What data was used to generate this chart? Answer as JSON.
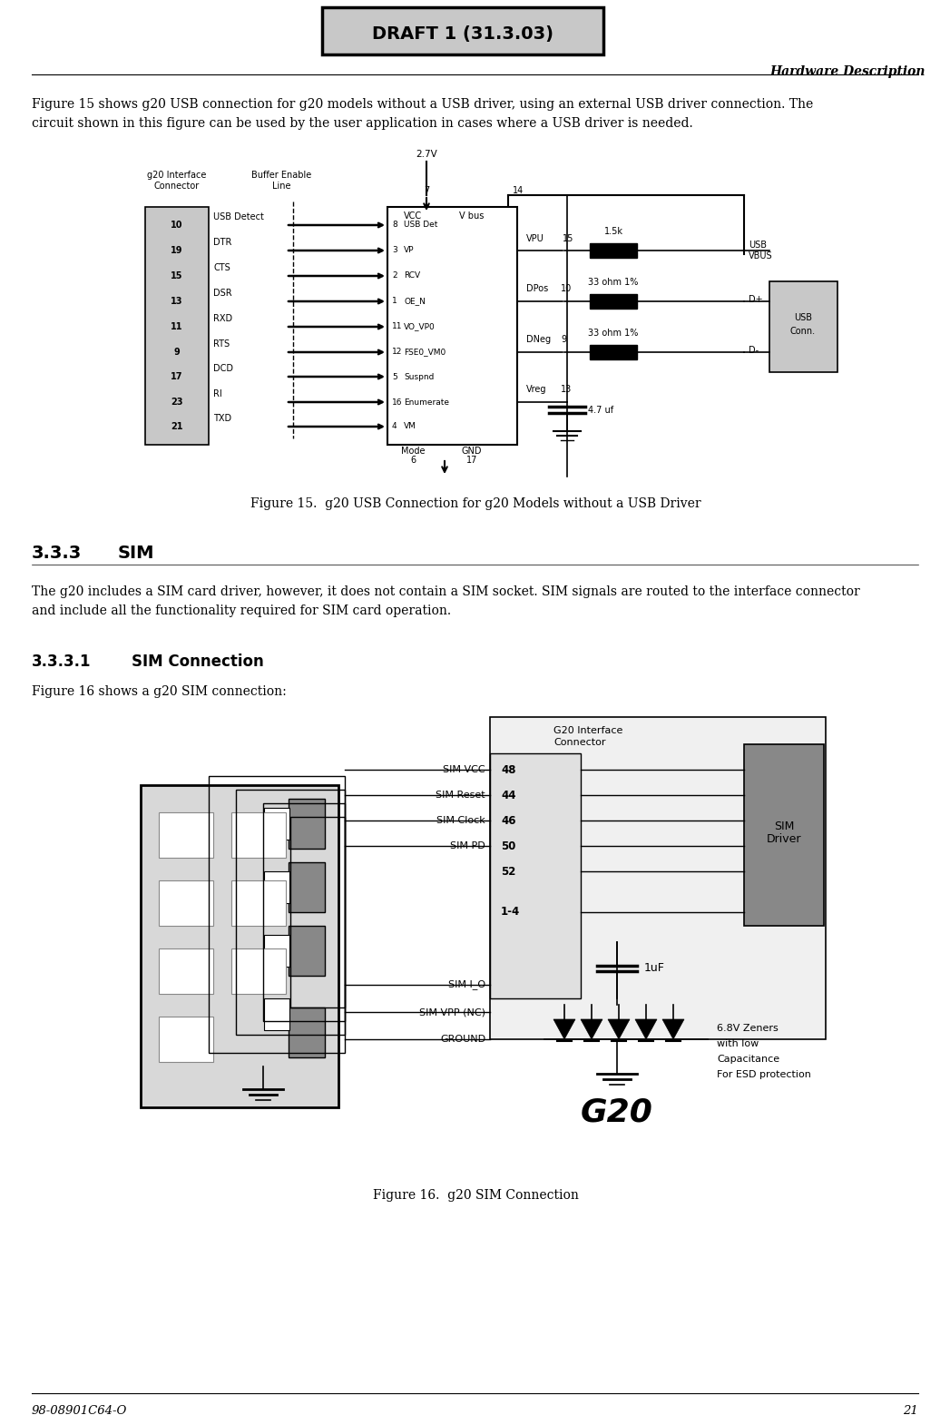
{
  "page_width": 10.47,
  "page_height": 15.7,
  "dpi": 100,
  "background_color": "#ffffff",
  "header_box_text": "DRAFT 1 (31.3.03)",
  "header_right_text": "Hardware Description",
  "footer_left_text": "98-08901C64-O",
  "footer_right_text": "21",
  "body_text_1": "Figure 15 shows g20 USB connection for g20 models without a USB driver, using an external USB driver connection. The\ncircuit shown in this figure can be used by the user application in cases where a USB driver is needed.",
  "figure15_caption": "Figure 15.  g20 USB Connection for g20 Models without a USB Driver",
  "section_333": "3.3.3",
  "section_333_title": "SIM",
  "section_333_body": "The g20 includes a SIM card driver, however, it does not contain a SIM socket. SIM signals are routed to the interface connector\nand include all the functionality required for SIM card operation.",
  "section_3331": "3.3.3.1",
  "section_3331_title": "SIM Connection",
  "section_3331_body": "Figure 16 shows a g20 SIM connection:",
  "figure16_caption": "Figure 16.  g20 SIM Connection",
  "pins_left": [
    [
      "10",
      "USB Detect"
    ],
    [
      "19",
      "DTR"
    ],
    [
      "15",
      "CTS"
    ],
    [
      "13",
      "DSR"
    ],
    [
      "11",
      "RXD"
    ],
    [
      "9",
      "RTS"
    ],
    [
      "17",
      "DCD"
    ],
    [
      "23",
      "RI"
    ],
    [
      "21",
      "TXD"
    ]
  ],
  "chip_pins": [
    [
      "8",
      "USB Det"
    ],
    [
      "3",
      "VP"
    ],
    [
      "2",
      "RCV"
    ],
    [
      "1",
      "OE_N"
    ],
    [
      "11",
      "VO_VP0"
    ],
    [
      "12",
      "FSE0_VM0"
    ],
    [
      "5",
      "Suspnd"
    ],
    [
      "16",
      "Enumerate"
    ],
    [
      "4",
      "VM"
    ]
  ],
  "sim_pins": [
    "48",
    "44",
    "46",
    "50",
    "52",
    "1-4"
  ],
  "sim_signals": [
    "SIM VCC",
    "SIM Reset",
    "SIM Clock",
    "SIM PD",
    "",
    "",
    "",
    "SIM I_O",
    "SIM VPP (NC)",
    "GROUND"
  ]
}
